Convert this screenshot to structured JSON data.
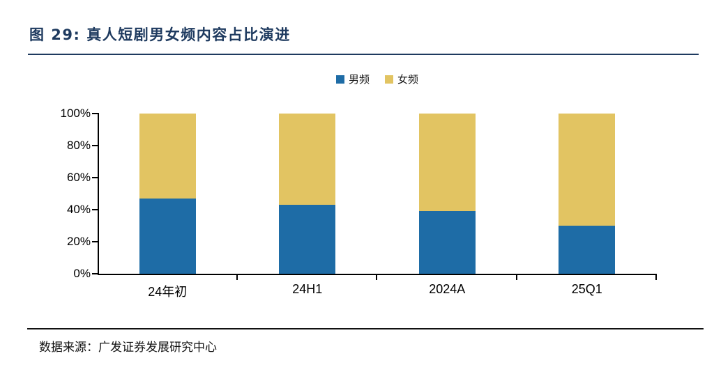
{
  "figure": {
    "title": "图 29:  真人短剧男女频内容占比演进",
    "source": "数据来源：广发证券发展研究中心"
  },
  "colors": {
    "title_navy": "#1e3a5f",
    "male_blue": "#1e6ca6",
    "female_gold": "#e2c462",
    "axis": "#000000"
  },
  "chart_data": {
    "type": "bar",
    "stacked": true,
    "percent_stacked": true,
    "title": "真人短剧男女频内容占比演进",
    "categories": [
      "24年初",
      "24H1",
      "2024A",
      "25Q1"
    ],
    "series": [
      {
        "name": "男频",
        "color": "#1e6ca6",
        "values": [
          47,
          43,
          39,
          30
        ]
      },
      {
        "name": "女频",
        "color": "#e2c462",
        "values": [
          53,
          57,
          61,
          70
        ]
      }
    ],
    "y_ticks": [
      100,
      80,
      60,
      40,
      20,
      0
    ],
    "y_tick_labels": [
      "100%",
      "80%",
      "60%",
      "40%",
      "20%",
      "0%"
    ],
    "ylim": [
      0,
      100
    ],
    "xlabel": "",
    "ylabel": "",
    "grid": false,
    "legend_position": "top-center"
  }
}
